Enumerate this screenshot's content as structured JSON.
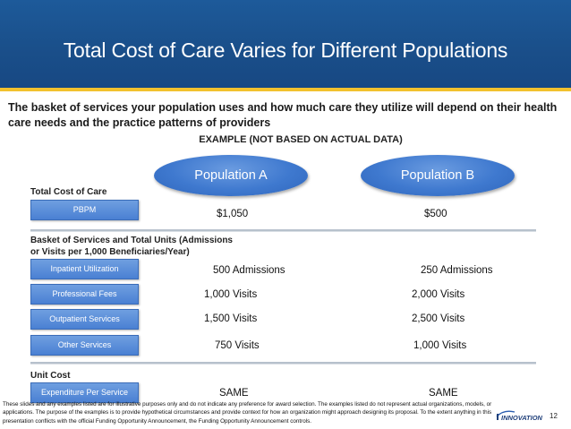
{
  "header": {
    "title": "Total Cost of Care Varies for Different Populations"
  },
  "subtitle": "The basket of services your population uses and how much care they utilize will depend on their health care needs and the practice patterns of providers",
  "example_label": "EXAMPLE (NOT BASED ON ACTUAL DATA)",
  "populations": {
    "a": "Population A",
    "b": "Population B"
  },
  "sections": {
    "total_cost": "Total Cost of Care",
    "basket_line1": "Basket of Services and Total Units (Admissions",
    "basket_line2": "or Visits per 1,000 Beneficiaries/Year)",
    "unit_cost": "Unit Cost"
  },
  "rows": {
    "pbpm": {
      "label": "PBPM",
      "a": "$1,050",
      "b": "$500"
    },
    "inpatient": {
      "label": "Inpatient Utilization",
      "a": "500 Admissions",
      "b": "250 Admissions"
    },
    "professional": {
      "label": "Professional Fees",
      "a": "1,000 Visits",
      "b": "2,000 Visits"
    },
    "outpatient": {
      "label": "Outpatient Services",
      "a": "1,500 Visits",
      "b": "2,500 Visits"
    },
    "other": {
      "label": "Other Services",
      "a": "750 Visits",
      "b": "1,000 Visits"
    },
    "expenditure": {
      "label": "Expenditure Per Service",
      "a": "SAME",
      "b": "SAME"
    }
  },
  "disclaimer": "These slides and any examples listed are for illustrative purposes only and do not indicate any preference for award selection. The examples listed do not represent actual organizations, models, or applications. The purpose of the examples is to provide hypothetical circumstances and provide context for how an organization might approach designing its proposal. To the extent anything in this presentation conflicts with the official Funding Opportunity Announcement, the Funding Opportunity Announcement controls.",
  "logo_text": "INNOVATION",
  "page_number": "12",
  "colors": {
    "header_bg": "#1a4f8a",
    "accent_rule": "#f2c12e",
    "box_blue": "#4a80d3"
  }
}
